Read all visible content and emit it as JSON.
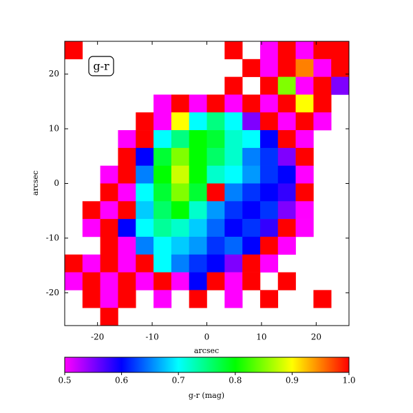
{
  "chart_data": {
    "type": "heatmap",
    "annotation": "g-r",
    "xlabel": "arcsec",
    "ylabel": "arcsec",
    "xlim": [
      -26,
      26
    ],
    "ylim": [
      -26,
      26
    ],
    "xticks": [
      -20,
      -10,
      0,
      10,
      20
    ],
    "yticks": [
      -20,
      -10,
      0,
      10,
      20
    ],
    "colormap": [
      "#ff00ff",
      "#0000ff",
      "#00ffff",
      "#00ff00",
      "#ffff00",
      "#ff0000"
    ],
    "clim": [
      0.5,
      1.0
    ],
    "cticks": [
      0.5,
      0.6,
      0.7,
      0.8,
      0.9,
      {
        "value": 1,
        "label": "1.0"
      }
    ],
    "clabel": "g-r (mag)",
    "z": [
      [
        1.0,
        null,
        null,
        null,
        null,
        null,
        null,
        null,
        null,
        1.0,
        null,
        0.5,
        1.0,
        0.5,
        1.0,
        1.0
      ],
      [
        null,
        null,
        null,
        null,
        null,
        null,
        null,
        null,
        null,
        null,
        1.0,
        0.5,
        1.0,
        0.95,
        0.5,
        1.0
      ],
      [
        null,
        null,
        null,
        null,
        null,
        null,
        null,
        null,
        null,
        1.0,
        null,
        1.0,
        0.85,
        0.5,
        1.0,
        0.55
      ],
      [
        null,
        null,
        null,
        null,
        null,
        0.5,
        1.0,
        0.5,
        1.0,
        0.5,
        1.0,
        0.5,
        1.0,
        0.9,
        1.0,
        null
      ],
      [
        null,
        null,
        null,
        null,
        1.0,
        0.5,
        0.9,
        0.7,
        0.75,
        0.7,
        0.55,
        1.0,
        0.5,
        1.0,
        0.5,
        null
      ],
      [
        null,
        null,
        null,
        0.5,
        1.0,
        0.7,
        0.75,
        0.8,
        0.78,
        0.72,
        0.7,
        0.6,
        1.0,
        0.5,
        null,
        null
      ],
      [
        null,
        null,
        null,
        1.0,
        0.6,
        0.78,
        0.85,
        0.8,
        0.76,
        0.72,
        0.65,
        0.62,
        0.55,
        1.0,
        null,
        null
      ],
      [
        null,
        null,
        0.5,
        1.0,
        0.65,
        0.8,
        0.88,
        0.8,
        0.72,
        0.7,
        0.66,
        0.62,
        0.6,
        0.5,
        null,
        null
      ],
      [
        null,
        null,
        1.0,
        0.5,
        0.7,
        0.78,
        0.85,
        0.78,
        1.0,
        0.65,
        0.62,
        0.6,
        0.58,
        1.0,
        null,
        null
      ],
      [
        null,
        1.0,
        0.5,
        1.0,
        0.68,
        0.76,
        0.8,
        0.72,
        0.66,
        0.62,
        0.6,
        0.62,
        0.55,
        0.5,
        null,
        null
      ],
      [
        null,
        0.5,
        1.0,
        0.6,
        0.7,
        0.74,
        0.72,
        0.68,
        0.64,
        0.6,
        0.62,
        0.58,
        1.0,
        0.5,
        null,
        null
      ],
      [
        null,
        null,
        1.0,
        0.5,
        0.65,
        0.7,
        0.68,
        0.66,
        0.62,
        0.64,
        0.6,
        1.0,
        0.5,
        null,
        null,
        null
      ],
      [
        1.0,
        0.5,
        1.0,
        0.5,
        1.0,
        0.7,
        0.65,
        0.62,
        0.6,
        0.55,
        1.0,
        0.5,
        null,
        null,
        null,
        null
      ],
      [
        0.5,
        1.0,
        0.5,
        1.0,
        0.5,
        1.0,
        0.5,
        0.6,
        1.0,
        0.5,
        1.0,
        null,
        1.0,
        null,
        null,
        null
      ],
      [
        null,
        1.0,
        0.5,
        1.0,
        null,
        0.5,
        null,
        1.0,
        null,
        0.5,
        null,
        1.0,
        null,
        null,
        1.0,
        null
      ],
      [
        null,
        null,
        1.0,
        null,
        null,
        null,
        null,
        null,
        null,
        null,
        null,
        null,
        null,
        null,
        null,
        null
      ]
    ]
  }
}
